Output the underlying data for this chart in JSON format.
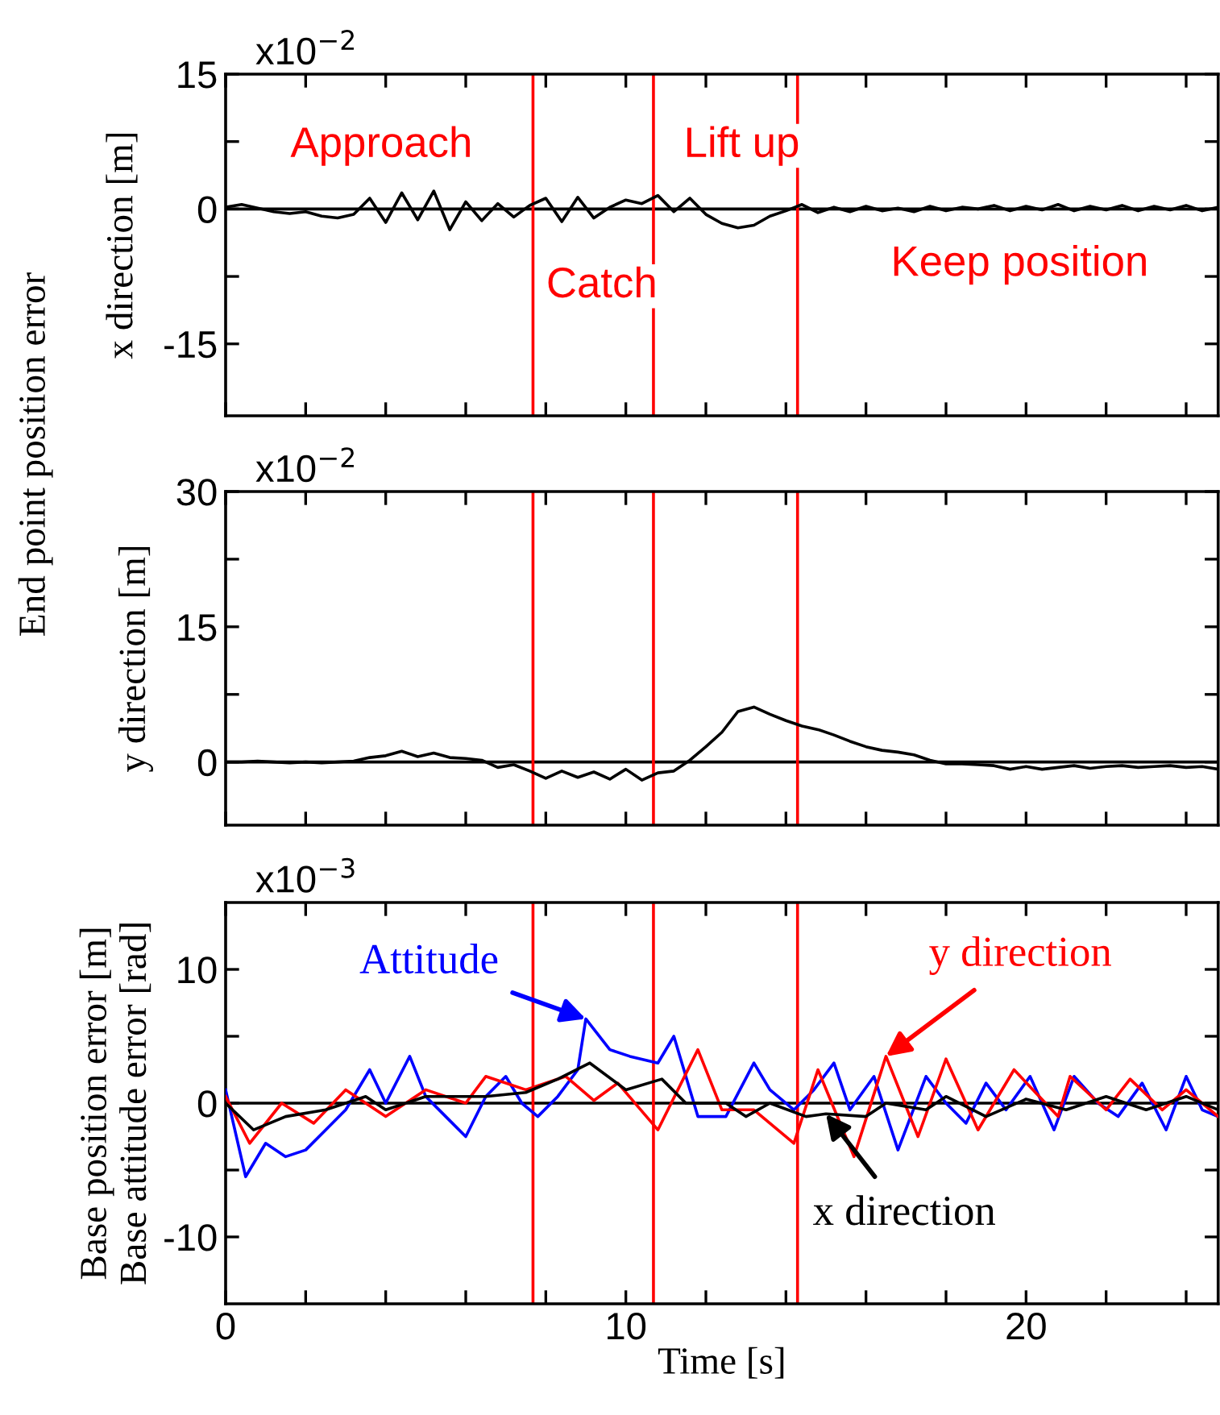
{
  "chart_data": [
    {
      "type": "line",
      "ylabel": "x direction [m]",
      "tick_labels": "y",
      "annotations": [
        "x10$^{−2}$",
        "End point position error",
        "Approach",
        "Catch",
        "Lift up",
        "Keep position"
      ],
      "xlim": [
        0,
        24.8
      ],
      "xticks": [
        0,
        {
          "value": 2,
          "label": null
        },
        {
          "value": 4,
          "label": null
        },
        {
          "value": 6,
          "label": null
        },
        {
          "value": 8,
          "label": null
        },
        10,
        {
          "value": 12,
          "label": null
        },
        {
          "value": 14,
          "label": null
        },
        {
          "value": 16,
          "label": null
        },
        {
          "value": 18,
          "label": null
        },
        20,
        {
          "value": 22,
          "label": null
        },
        {
          "value": 24,
          "label": null
        }
      ],
      "ylim": [
        -23,
        15
      ],
      "yticks": [
        -15,
        {
          "value": -7.5,
          "label": null
        },
        0,
        {
          "value": 7.5,
          "label": null
        },
        15
      ],
      "ref_lines": [
        {
          "axis": "y",
          "value": 0,
          "color": "#000000"
        },
        {
          "axis": "x",
          "value": 7.68,
          "color": "#ff0000"
        },
        {
          "axis": "x",
          "value": 10.69,
          "color": "#ff0000"
        },
        {
          "axis": "x",
          "value": 14.29,
          "color": "#ff0000"
        }
      ],
      "series": [
        {
          "color": "#000000",
          "x": [
            0,
            0.4,
            0.8,
            1.2,
            1.6,
            2.0,
            2.4,
            2.8,
            3.2,
            3.6,
            4.0,
            4.4,
            4.8,
            5.2,
            5.6,
            6.0,
            6.4,
            6.8,
            7.2,
            7.6,
            8.0,
            8.4,
            8.8,
            9.2,
            9.6,
            10.0,
            10.4,
            10.8,
            11.2,
            11.6,
            12.0,
            12.4,
            12.8,
            13.2,
            13.6,
            14.0,
            14.4,
            14.8,
            15.2,
            15.6,
            16.0,
            16.4,
            16.8,
            17.2,
            17.6,
            18.0,
            18.4,
            18.8,
            19.2,
            19.6,
            20.0,
            20.4,
            20.8,
            21.2,
            21.6,
            22.0,
            22.4,
            22.8,
            23.2,
            23.6,
            24.0,
            24.4,
            24.8
          ],
          "values": [
            0.2,
            0.5,
            0.1,
            -0.3,
            -0.5,
            -0.3,
            -0.8,
            -1.0,
            -0.6,
            1.2,
            -1.5,
            1.8,
            -1.2,
            2.0,
            -2.3,
            0.8,
            -1.3,
            0.6,
            -0.9,
            0.4,
            1.2,
            -1.4,
            1.3,
            -1.0,
            0.2,
            1.0,
            0.6,
            1.5,
            -0.3,
            1.2,
            -0.6,
            -1.6,
            -2.1,
            -1.8,
            -0.8,
            -0.2,
            0.5,
            -0.4,
            0.2,
            -0.3,
            0.3,
            -0.2,
            0.1,
            -0.3,
            0.3,
            -0.2,
            0.2,
            0.0,
            0.4,
            -0.2,
            0.3,
            -0.1,
            0.5,
            -0.2,
            0.3,
            -0.1,
            0.4,
            -0.2,
            0.3,
            -0.1,
            0.4,
            -0.2,
            0.2
          ]
        }
      ]
    },
    {
      "type": "line",
      "ylabel": "y direction [m]",
      "tick_labels": "y",
      "annotations": [
        "x10$^{−2}$"
      ],
      "xlim": [
        0,
        24.8
      ],
      "xticks": [
        0,
        {
          "value": 2,
          "label": null
        },
        {
          "value": 4,
          "label": null
        },
        {
          "value": 6,
          "label": null
        },
        {
          "value": 8,
          "label": null
        },
        10,
        {
          "value": 12,
          "label": null
        },
        {
          "value": 14,
          "label": null
        },
        {
          "value": 16,
          "label": null
        },
        {
          "value": 18,
          "label": null
        },
        20,
        {
          "value": 22,
          "label": null
        },
        {
          "value": 24,
          "label": null
        }
      ],
      "ylim": [
        -7,
        30
      ],
      "yticks": [
        0,
        {
          "value": 7.5,
          "label": null
        },
        15,
        {
          "value": 22.5,
          "label": null
        },
        30
      ],
      "ref_lines": [
        {
          "axis": "y",
          "value": 0,
          "color": "#000000"
        },
        {
          "axis": "x",
          "value": 7.68,
          "color": "#ff0000"
        },
        {
          "axis": "x",
          "value": 10.69,
          "color": "#ff0000"
        },
        {
          "axis": "x",
          "value": 14.29,
          "color": "#ff0000"
        }
      ],
      "series": [
        {
          "color": "#000000",
          "x": [
            0,
            0.4,
            0.8,
            1.2,
            1.6,
            2.0,
            2.4,
            2.8,
            3.2,
            3.6,
            4.0,
            4.4,
            4.8,
            5.2,
            5.6,
            6.0,
            6.4,
            6.8,
            7.2,
            7.6,
            8.0,
            8.4,
            8.8,
            9.2,
            9.6,
            10.0,
            10.4,
            10.8,
            11.2,
            11.6,
            12.0,
            12.4,
            12.8,
            13.2,
            13.6,
            14.0,
            14.4,
            14.8,
            15.2,
            15.6,
            16.0,
            16.4,
            16.8,
            17.2,
            17.6,
            18.0,
            18.4,
            18.8,
            19.2,
            19.6,
            20.0,
            20.4,
            20.8,
            21.2,
            21.6,
            22.0,
            22.4,
            22.8,
            23.2,
            23.6,
            24.0,
            24.4,
            24.8
          ],
          "values": [
            0,
            0,
            0.1,
            0,
            -0.1,
            0,
            -0.1,
            0,
            0.1,
            0.5,
            0.7,
            1.2,
            0.6,
            1.0,
            0.5,
            0.4,
            0.2,
            -0.6,
            -0.3,
            -1.0,
            -1.8,
            -1.0,
            -1.7,
            -1.1,
            -1.9,
            -0.8,
            -2.0,
            -1.2,
            -1.0,
            0.2,
            1.7,
            3.3,
            5.6,
            6.1,
            5.3,
            4.6,
            4.0,
            3.6,
            3.0,
            2.3,
            1.7,
            1.3,
            1.1,
            0.8,
            0.2,
            -0.2,
            -0.2,
            -0.3,
            -0.4,
            -0.8,
            -0.5,
            -0.8,
            -0.6,
            -0.4,
            -0.7,
            -0.5,
            -0.4,
            -0.6,
            -0.5,
            -0.4,
            -0.6,
            -0.5,
            -0.8
          ]
        }
      ]
    },
    {
      "type": "line",
      "xlabel": "Time [s]",
      "ylabel": "Base position error [m]\nBase attitude error [rad]",
      "annotations": [
        "x10$^{−3}$",
        {
          "text": "Attitude",
          "x": 9.0,
          "y": 6.3
        },
        {
          "text": "y direction",
          "x": 16.5,
          "y": 3.5
        },
        {
          "text": "x direction",
          "x": 15.0,
          "y": -0.8
        }
      ],
      "xlim": [
        0,
        24.8
      ],
      "xticks": [
        0,
        {
          "value": 2,
          "label": null
        },
        {
          "value": 4,
          "label": null
        },
        {
          "value": 6,
          "label": null
        },
        {
          "value": 8,
          "label": null
        },
        10,
        {
          "value": 12,
          "label": null
        },
        {
          "value": 14,
          "label": null
        },
        {
          "value": 16,
          "label": null
        },
        {
          "value": 18,
          "label": null
        },
        20,
        {
          "value": 22,
          "label": null
        },
        {
          "value": 24,
          "label": null
        }
      ],
      "ylim": [
        -15,
        15
      ],
      "yticks": [
        -10,
        {
          "value": -5,
          "label": null
        },
        0,
        {
          "value": 5,
          "label": null
        },
        10
      ],
      "ref_lines": [
        {
          "axis": "y",
          "value": 0,
          "color": "#000000"
        },
        {
          "axis": "x",
          "value": 7.68,
          "color": "#ff0000"
        },
        {
          "axis": "x",
          "value": 10.69,
          "color": "#ff0000"
        },
        {
          "axis": "x",
          "value": 14.29,
          "color": "#ff0000"
        }
      ],
      "series": [
        {
          "color": "#0000ff",
          "x": [
            0,
            0.5,
            1.0,
            1.5,
            2.0,
            2.5,
            3.0,
            3.6,
            4.0,
            4.6,
            5.0,
            5.5,
            6.0,
            6.5,
            7.0,
            7.4,
            7.8,
            8.3,
            8.8,
            9.0,
            9.6,
            10.1,
            10.8,
            11.2,
            11.8,
            12.5,
            13.2,
            13.6,
            14.2,
            14.7,
            15.2,
            15.6,
            16.2,
            16.8,
            17.5,
            18.0,
            18.5,
            19.0,
            19.5,
            20.1,
            20.7,
            21.2,
            21.8,
            22.3,
            22.9,
            23.5,
            24.0,
            24.4,
            24.8
          ],
          "values": [
            1,
            -5.5,
            -3,
            -4,
            -3.5,
            -2,
            -0.5,
            2.5,
            0,
            3.5,
            0.5,
            -1,
            -2.5,
            0.5,
            2,
            0,
            -1,
            0.5,
            2.5,
            6.3,
            4.0,
            3.5,
            3,
            5,
            -1,
            -1,
            3,
            1,
            -0.5,
            1,
            3,
            -0.5,
            2,
            -3.5,
            2,
            0,
            -1.5,
            1.5,
            -0.5,
            2,
            -2,
            2,
            0,
            -1,
            1.5,
            -2,
            2,
            -0.5,
            -1
          ]
        },
        {
          "color": "#ff0000",
          "x": [
            0,
            0.6,
            1.4,
            2.2,
            3.0,
            4.0,
            5.0,
            6.0,
            6.5,
            7.5,
            8.5,
            9.2,
            9.8,
            10.8,
            11.8,
            12.4,
            13.2,
            14.2,
            14.8,
            15.7,
            16.5,
            17.3,
            18.0,
            18.8,
            19.7,
            20.8,
            21.1,
            22.0,
            22.6,
            23.4,
            24.0,
            24.8
          ],
          "values": [
            0.5,
            -3,
            0,
            -1.5,
            1,
            -1,
            1,
            0,
            2,
            1,
            2,
            0.2,
            1.5,
            -2,
            4,
            -0.5,
            -0.5,
            -3,
            2.5,
            -4,
            3.5,
            -2.5,
            3.3,
            -2,
            2.5,
            -1,
            2,
            -0.5,
            1.8,
            -0.5,
            1,
            -1
          ]
        },
        {
          "color": "#000000",
          "x": [
            0,
            0.7,
            1.5,
            2.5,
            3.5,
            4.0,
            5.0,
            6.5,
            7.5,
            8.3,
            9.1,
            10.0,
            10.9,
            11.5,
            12.5,
            13.0,
            13.6,
            14.5,
            15.0,
            16.0,
            16.5,
            17.5,
            18.0,
            19.0,
            20.0,
            21.0,
            22.0,
            23.0,
            24.0,
            24.8
          ],
          "values": [
            0,
            -2,
            -1,
            -0.5,
            0.5,
            -0.5,
            0.5,
            0.5,
            0.8,
            1.8,
            3,
            1,
            1.8,
            0,
            0,
            -1,
            0,
            -1,
            -0.8,
            -1,
            0,
            -0.5,
            0.5,
            -1,
            0.3,
            -0.5,
            0.5,
            -0.5,
            0.5,
            -0.5
          ]
        }
      ]
    }
  ]
}
